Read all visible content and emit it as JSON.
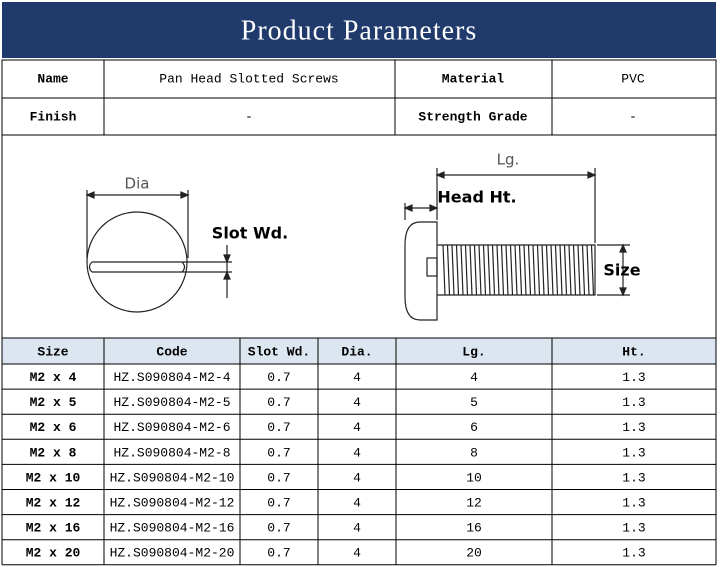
{
  "header": {
    "title": "Product Parameters"
  },
  "info": [
    [
      "Name",
      "Pan Head Slotted Screws",
      "Material",
      "PVC"
    ],
    [
      "Finish",
      "-",
      "Strength Grade",
      "-"
    ]
  ],
  "diagram": {
    "dia": "Dia",
    "slot_wd": "Slot Wd.",
    "lg": "Lg.",
    "head_ht": "Head Ht.",
    "size": "Size"
  },
  "table": {
    "columns": [
      "Size",
      "Code",
      "Slot Wd.",
      "Dia.",
      "Lg.",
      "Ht."
    ],
    "rows": [
      [
        "M2 x 4",
        "HZ.S090804-M2-4",
        0.7,
        4,
        4,
        1.3
      ],
      [
        "M2 x 5",
        "HZ.S090804-M2-5",
        0.7,
        4,
        5,
        1.3
      ],
      [
        "M2 x 6",
        "HZ.S090804-M2-6",
        0.7,
        4,
        6,
        1.3
      ],
      [
        "M2 x 8",
        "HZ.S090804-M2-8",
        0.7,
        4,
        8,
        1.3
      ],
      [
        "M2 x 10",
        "HZ.S090804-M2-10",
        0.7,
        4,
        10,
        1.3
      ],
      [
        "M2 x 12",
        "HZ.S090804-M2-12",
        0.7,
        4,
        12,
        1.3
      ],
      [
        "M2 x 16",
        "HZ.S090804-M2-16",
        0.7,
        4,
        16,
        1.3
      ],
      [
        "M2 x 20",
        "HZ.S090804-M2-20",
        0.7,
        4,
        20,
        1.3
      ]
    ]
  }
}
